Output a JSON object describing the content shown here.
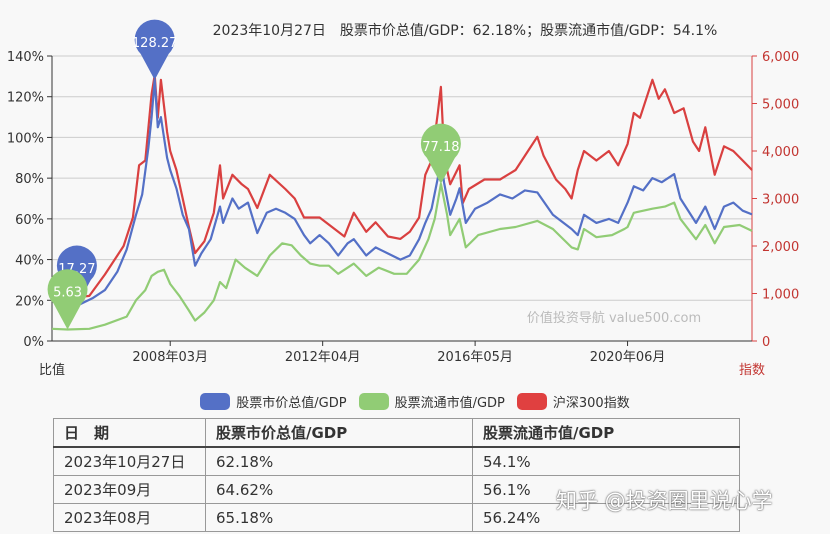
{
  "chart_data": {
    "type": "line",
    "title": "2023年10月27日　股票市价总值/GDP：62.18%；股票流通市值/GDP：54.1%",
    "ylabel_left": "比值",
    "ylabel_right": "指数",
    "yleft": {
      "range": [
        0,
        140
      ],
      "ticks": [
        "0%",
        "20%",
        "40%",
        "60%",
        "80%",
        "100%",
        "120%",
        "140%"
      ]
    },
    "yright": {
      "range": [
        0,
        6000
      ],
      "ticks": [
        "0",
        "1,000",
        "2,000",
        "3,000",
        "4,000",
        "5,000",
        "6,000"
      ]
    },
    "xrange": [
      "2005-01",
      "2023-10"
    ],
    "xticks": [
      "2008年03月",
      "2012年04月",
      "2016年05月",
      "2020年06月"
    ],
    "xtick_dates": [
      "2008-03",
      "2012-04",
      "2016-05",
      "2020-06"
    ],
    "grid": true,
    "legend": "bottom",
    "series": [
      {
        "name": "股票市价总值/GDP",
        "color": "#5470c6",
        "axis": "left",
        "points": [
          [
            "2005-01",
            22
          ],
          [
            "2005-05",
            19
          ],
          [
            "2005-09",
            17.27
          ],
          [
            "2006-02",
            21
          ],
          [
            "2006-06",
            25
          ],
          [
            "2006-10",
            34
          ],
          [
            "2007-01",
            45
          ],
          [
            "2007-04",
            62
          ],
          [
            "2007-06",
            72
          ],
          [
            "2007-08",
            95
          ],
          [
            "2007-09",
            110
          ],
          [
            "2007-10",
            128.27
          ],
          [
            "2007-11",
            105
          ],
          [
            "2007-12",
            110
          ],
          [
            "2008-02",
            90
          ],
          [
            "2008-03",
            84
          ],
          [
            "2008-05",
            75
          ],
          [
            "2008-07",
            62
          ],
          [
            "2008-09",
            55
          ],
          [
            "2008-11",
            37
          ],
          [
            "2009-01",
            43
          ],
          [
            "2009-04",
            50
          ],
          [
            "2009-07",
            66
          ],
          [
            "2009-08",
            58
          ],
          [
            "2009-11",
            70
          ],
          [
            "2010-01",
            65
          ],
          [
            "2010-04",
            68
          ],
          [
            "2010-07",
            53
          ],
          [
            "2010-10",
            63
          ],
          [
            "2011-01",
            65
          ],
          [
            "2011-04",
            63
          ],
          [
            "2011-07",
            60
          ],
          [
            "2011-10",
            52
          ],
          [
            "2011-12",
            48
          ],
          [
            "2012-03",
            52
          ],
          [
            "2012-06",
            48
          ],
          [
            "2012-09",
            42
          ],
          [
            "2012-12",
            48
          ],
          [
            "2013-02",
            50
          ],
          [
            "2013-06",
            42
          ],
          [
            "2013-09",
            46
          ],
          [
            "2014-01",
            43
          ],
          [
            "2014-05",
            40
          ],
          [
            "2014-08",
            42
          ],
          [
            "2014-11",
            50
          ],
          [
            "2015-01",
            58
          ],
          [
            "2015-03",
            65
          ],
          [
            "2015-05",
            80
          ],
          [
            "2015-06",
            90
          ],
          [
            "2015-07",
            78
          ],
          [
            "2015-09",
            62
          ],
          [
            "2015-11",
            70
          ],
          [
            "2015-12",
            75
          ],
          [
            "2016-02",
            58
          ],
          [
            "2016-05",
            65
          ],
          [
            "2016-09",
            68
          ],
          [
            "2017-01",
            72
          ],
          [
            "2017-05",
            70
          ],
          [
            "2017-09",
            74
          ],
          [
            "2018-01",
            73
          ],
          [
            "2018-06",
            62
          ],
          [
            "2018-12",
            55
          ],
          [
            "2019-02",
            52
          ],
          [
            "2019-04",
            62
          ],
          [
            "2019-08",
            58
          ],
          [
            "2019-12",
            60
          ],
          [
            "2020-03",
            58
          ],
          [
            "2020-06",
            68
          ],
          [
            "2020-08",
            76
          ],
          [
            "2020-11",
            74
          ],
          [
            "2021-02",
            80
          ],
          [
            "2021-05",
            78
          ],
          [
            "2021-09",
            82
          ],
          [
            "2021-11",
            70
          ],
          [
            "2022-04",
            58
          ],
          [
            "2022-07",
            66
          ],
          [
            "2022-10",
            55
          ],
          [
            "2023-01",
            66
          ],
          [
            "2023-04",
            68
          ],
          [
            "2023-07",
            64
          ],
          [
            "2023-10",
            62.18
          ]
        ]
      },
      {
        "name": "股票流通市值/GDP",
        "color": "#91cc75",
        "axis": "left",
        "points": [
          [
            "2005-01",
            6
          ],
          [
            "2005-06",
            5.63
          ],
          [
            "2006-01",
            6
          ],
          [
            "2006-06",
            8
          ],
          [
            "2007-01",
            12
          ],
          [
            "2007-04",
            20
          ],
          [
            "2007-07",
            25
          ],
          [
            "2007-09",
            32
          ],
          [
            "2007-11",
            34
          ],
          [
            "2008-01",
            35
          ],
          [
            "2008-03",
            28
          ],
          [
            "2008-06",
            22
          ],
          [
            "2008-09",
            15
          ],
          [
            "2008-11",
            10
          ],
          [
            "2009-02",
            14
          ],
          [
            "2009-05",
            20
          ],
          [
            "2009-07",
            29
          ],
          [
            "2009-09",
            26
          ],
          [
            "2009-12",
            40
          ],
          [
            "2010-03",
            36
          ],
          [
            "2010-07",
            32
          ],
          [
            "2010-11",
            42
          ],
          [
            "2011-03",
            48
          ],
          [
            "2011-06",
            47
          ],
          [
            "2011-09",
            42
          ],
          [
            "2011-12",
            38
          ],
          [
            "2012-03",
            37
          ],
          [
            "2012-06",
            37
          ],
          [
            "2012-09",
            33
          ],
          [
            "2012-12",
            36
          ],
          [
            "2013-02",
            38
          ],
          [
            "2013-06",
            32
          ],
          [
            "2013-10",
            36
          ],
          [
            "2014-03",
            33
          ],
          [
            "2014-07",
            33
          ],
          [
            "2014-11",
            40
          ],
          [
            "2015-02",
            50
          ],
          [
            "2015-04",
            60
          ],
          [
            "2015-06",
            77.18
          ],
          [
            "2015-08",
            62
          ],
          [
            "2015-09",
            52
          ],
          [
            "2015-12",
            60
          ],
          [
            "2016-02",
            46
          ],
          [
            "2016-06",
            52
          ],
          [
            "2017-01",
            55
          ],
          [
            "2017-06",
            56
          ],
          [
            "2018-01",
            59
          ],
          [
            "2018-06",
            55
          ],
          [
            "2018-12",
            46
          ],
          [
            "2019-02",
            45
          ],
          [
            "2019-04",
            55
          ],
          [
            "2019-08",
            51
          ],
          [
            "2020-01",
            52
          ],
          [
            "2020-05",
            55
          ],
          [
            "2020-06",
            56
          ],
          [
            "2020-08",
            63
          ],
          [
            "2021-02",
            65
          ],
          [
            "2021-06",
            66
          ],
          [
            "2021-09",
            68
          ],
          [
            "2021-11",
            60
          ],
          [
            "2022-04",
            50
          ],
          [
            "2022-07",
            57
          ],
          [
            "2022-10",
            48
          ],
          [
            "2023-01",
            56
          ],
          [
            "2023-06",
            57
          ],
          [
            "2023-10",
            54.1
          ]
        ]
      },
      {
        "name": "沪深300指数",
        "color": "#d94040",
        "axis": "right",
        "points": [
          [
            "2005-01",
            1000
          ],
          [
            "2005-06",
            900
          ],
          [
            "2006-01",
            950
          ],
          [
            "2006-06",
            1400
          ],
          [
            "2006-12",
            2000
          ],
          [
            "2007-03",
            2600
          ],
          [
            "2007-05",
            3700
          ],
          [
            "2007-07",
            3800
          ],
          [
            "2007-09",
            5200
          ],
          [
            "2007-10",
            5600
          ],
          [
            "2007-11",
            4700
          ],
          [
            "2007-12",
            5500
          ],
          [
            "2008-02",
            4400
          ],
          [
            "2008-03",
            4000
          ],
          [
            "2008-05",
            3600
          ],
          [
            "2008-07",
            3000
          ],
          [
            "2008-09",
            2400
          ],
          [
            "2008-11",
            1850
          ],
          [
            "2009-02",
            2100
          ],
          [
            "2009-05",
            2700
          ],
          [
            "2009-07",
            3700
          ],
          [
            "2009-08",
            3000
          ],
          [
            "2009-11",
            3500
          ],
          [
            "2010-02",
            3300
          ],
          [
            "2010-04",
            3200
          ],
          [
            "2010-07",
            2800
          ],
          [
            "2010-11",
            3500
          ],
          [
            "2011-04",
            3200
          ],
          [
            "2011-07",
            3000
          ],
          [
            "2011-10",
            2600
          ],
          [
            "2012-03",
            2600
          ],
          [
            "2012-07",
            2400
          ],
          [
            "2012-11",
            2200
          ],
          [
            "2013-02",
            2700
          ],
          [
            "2013-06",
            2300
          ],
          [
            "2013-09",
            2500
          ],
          [
            "2014-01",
            2200
          ],
          [
            "2014-05",
            2150
          ],
          [
            "2014-08",
            2300
          ],
          [
            "2014-11",
            2600
          ],
          [
            "2015-01",
            3500
          ],
          [
            "2015-03",
            3800
          ],
          [
            "2015-05",
            4800
          ],
          [
            "2015-06",
            5350
          ],
          [
            "2015-07",
            4000
          ],
          [
            "2015-08",
            3600
          ],
          [
            "2015-09",
            3300
          ],
          [
            "2015-12",
            3700
          ],
          [
            "2016-01",
            2900
          ],
          [
            "2016-03",
            3200
          ],
          [
            "2016-08",
            3400
          ],
          [
            "2017-01",
            3400
          ],
          [
            "2017-06",
            3600
          ],
          [
            "2017-10",
            4000
          ],
          [
            "2018-01",
            4300
          ],
          [
            "2018-03",
            3900
          ],
          [
            "2018-07",
            3400
          ],
          [
            "2018-10",
            3200
          ],
          [
            "2018-12",
            3000
          ],
          [
            "2019-02",
            3600
          ],
          [
            "2019-04",
            4000
          ],
          [
            "2019-08",
            3800
          ],
          [
            "2019-12",
            4000
          ],
          [
            "2020-03",
            3700
          ],
          [
            "2020-06",
            4150
          ],
          [
            "2020-08",
            4800
          ],
          [
            "2020-10",
            4700
          ],
          [
            "2021-02",
            5500
          ],
          [
            "2021-04",
            5100
          ],
          [
            "2021-06",
            5300
          ],
          [
            "2021-09",
            4800
          ],
          [
            "2021-12",
            4900
          ],
          [
            "2022-03",
            4200
          ],
          [
            "2022-05",
            4000
          ],
          [
            "2022-07",
            4500
          ],
          [
            "2022-10",
            3500
          ],
          [
            "2023-01",
            4100
          ],
          [
            "2023-04",
            4000
          ],
          [
            "2023-07",
            3800
          ],
          [
            "2023-10",
            3600
          ]
        ]
      }
    ],
    "markers": [
      {
        "series": 0,
        "date": "2005-09",
        "value": 17.27,
        "label": "17.27"
      },
      {
        "series": 1,
        "date": "2005-06",
        "value": 5.63,
        "label": "5.63"
      },
      {
        "series": 0,
        "date": "2007-10",
        "value": 128.27,
        "label": "128.27"
      },
      {
        "series": 1,
        "date": "2015-06",
        "value": 77.18,
        "label": "77.18"
      }
    ],
    "watermark": "价值投资导航 value500.com"
  },
  "legend": [
    "股票市价总值/GDP",
    "股票流通市值/GDP",
    "沪深300指数"
  ],
  "table": {
    "headers": [
      "日　期",
      "股票市价总值/GDP",
      "股票流通市值/GDP"
    ],
    "rows": [
      [
        "2023年10月27日",
        "62.18%",
        "54.1%"
      ],
      [
        "2023年09月",
        "64.62%",
        "56.1%"
      ],
      [
        "2023年08月",
        "65.18%",
        "56.24%"
      ]
    ]
  },
  "site_watermark": "知乎 @投资圈里说心学"
}
